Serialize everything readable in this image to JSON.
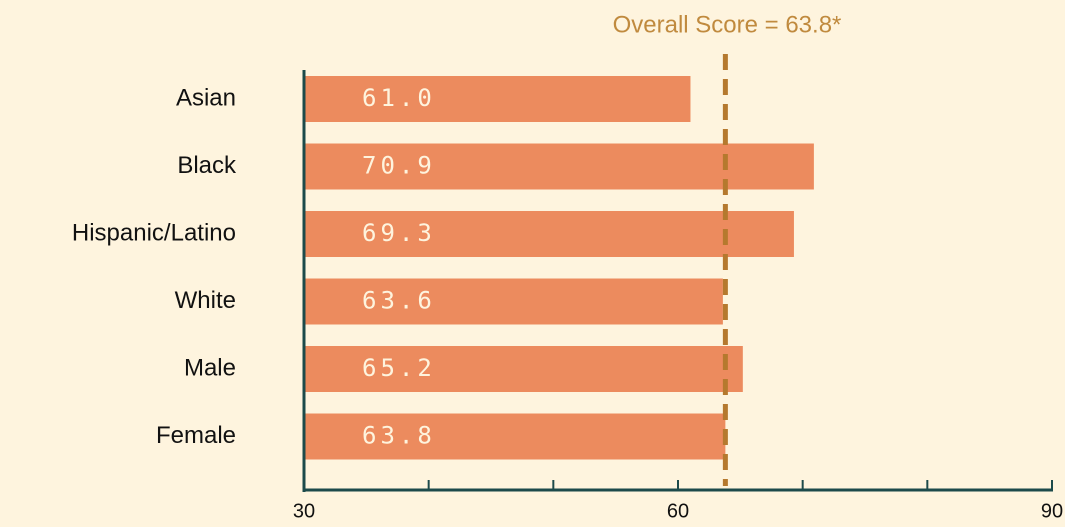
{
  "chart_data": {
    "type": "bar",
    "orientation": "horizontal",
    "categories": [
      "Asian",
      "Black",
      "Hispanic/Latino",
      "White",
      "Male",
      "Female"
    ],
    "values": [
      61.0,
      70.9,
      69.3,
      63.6,
      65.2,
      63.8
    ],
    "value_labels": [
      "61.0",
      "70.9",
      "69.3",
      "63.6",
      "65.2",
      "63.8"
    ],
    "color": "#ec8b5e",
    "xlim": [
      30,
      90
    ],
    "xticks": [
      30,
      60,
      90
    ],
    "minor_xticks": [
      40,
      50,
      70,
      80
    ],
    "grid": false,
    "reference_line": {
      "value": 63.8,
      "label": "Overall Score = 63.8*",
      "color": "#b5792e"
    }
  }
}
